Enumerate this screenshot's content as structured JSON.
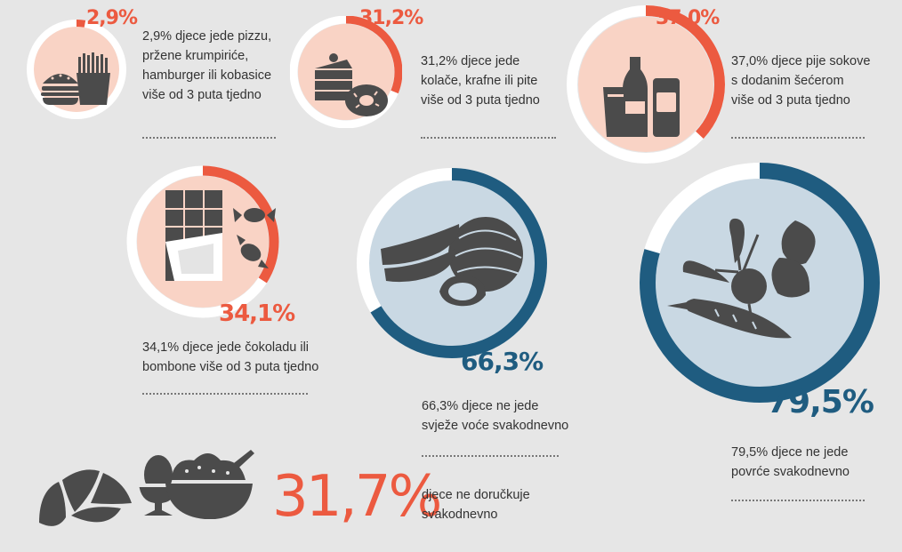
{
  "colors": {
    "background": "#e6e6e6",
    "red_accent": "#ec5a40",
    "red_fill": "#f9d3c5",
    "blue_accent": "#1f5c80",
    "blue_fill": "#c9d8e3",
    "ring_track": "#ffffff",
    "icon_gray": "#4b4b4b"
  },
  "items": [
    {
      "value": 2.9,
      "pct_label": "2,9%",
      "text": [
        "2,9% djece jede pizzu,",
        "pržene krumpiriće,",
        "hamburger ili kobasice",
        "više od 3 puta tjedno"
      ],
      "icon": "burger-fries-icon"
    },
    {
      "value": 31.2,
      "pct_label": "31,2%",
      "text": [
        "31,2% djece jede",
        "kolače, krafne ili pite",
        "više od 3 puta tjedno"
      ],
      "icon": "cake-donut-icon"
    },
    {
      "value": 37.0,
      "pct_label": "37,0%",
      "text": [
        "37,0% djece pije sokove",
        "s dodanim šećerom",
        "više od 3 puta tjedno"
      ],
      "icon": "soda-drinks-icon"
    },
    {
      "value": 34.1,
      "pct_label": "34,1%",
      "text": [
        "34,1% djece jede čokoladu ili",
        "bombone više od 3 puta tjedno"
      ],
      "icon": "chocolate-candy-icon"
    },
    {
      "value": 66.3,
      "pct_label": "66,3%",
      "text": [
        "66,3% djece ne jede",
        "svježe voće svakodnevno"
      ],
      "icon": "fruit-icon"
    },
    {
      "value": 79.5,
      "pct_label": "79,5%",
      "text": [
        "79,5% djece ne jede",
        "povrće svakodnevno"
      ],
      "icon": "vegetables-icon"
    }
  ],
  "breakfast": {
    "value": 31.7,
    "pct_label": "31,7%",
    "text": [
      "djece ne doručkuje",
      "svakodnevno"
    ],
    "icons": [
      "croissant-icon",
      "egg-icon",
      "cereal-bowl-icon"
    ]
  }
}
